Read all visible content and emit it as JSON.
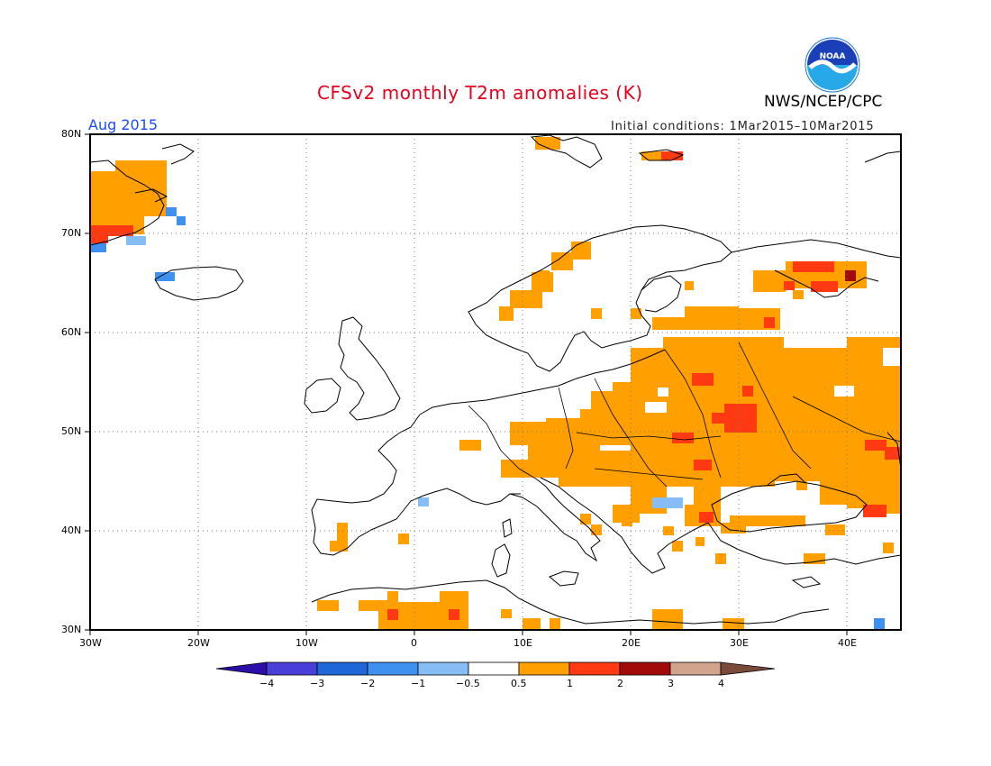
{
  "title": "CFSv2 monthly T2m anomalies (K)",
  "agency": "NWS/NCEP/CPC",
  "logo_text": "NOAA",
  "month_label": "Aug 2015",
  "initial_conditions": "Initial conditions: 1Mar2015–10Mar2015",
  "map": {
    "lon_range": [
      -30,
      45
    ],
    "lat_range": [
      30,
      80
    ],
    "lat_labels": [
      "80N",
      "70N",
      "60N",
      "50N",
      "40N",
      "30N"
    ],
    "lon_labels": [
      "30W",
      "20W",
      "10W",
      "0",
      "10E",
      "20E",
      "30E",
      "40E"
    ],
    "grid": "dotted"
  },
  "colorbar": {
    "labels": [
      "−4",
      "−3",
      "−2",
      "−1",
      "−0.5",
      "0.5",
      "1",
      "2",
      "3",
      "4"
    ],
    "colors": [
      "#2d0ea8",
      "#4a3ed9",
      "#1f66d8",
      "#3f91f0",
      "#86bdf5",
      "#ffffff",
      "#ffa000",
      "#ff3a12",
      "#a20a0a",
      "#d2a38d",
      "#7a4b3a"
    ]
  },
  "anomaly_classes": {
    "warm1": "#ffa000",
    "warm2": "#ff3a12",
    "warm3": "#a20a0a",
    "cool1": "#86bdf5",
    "cool2": "#3f91f0"
  }
}
